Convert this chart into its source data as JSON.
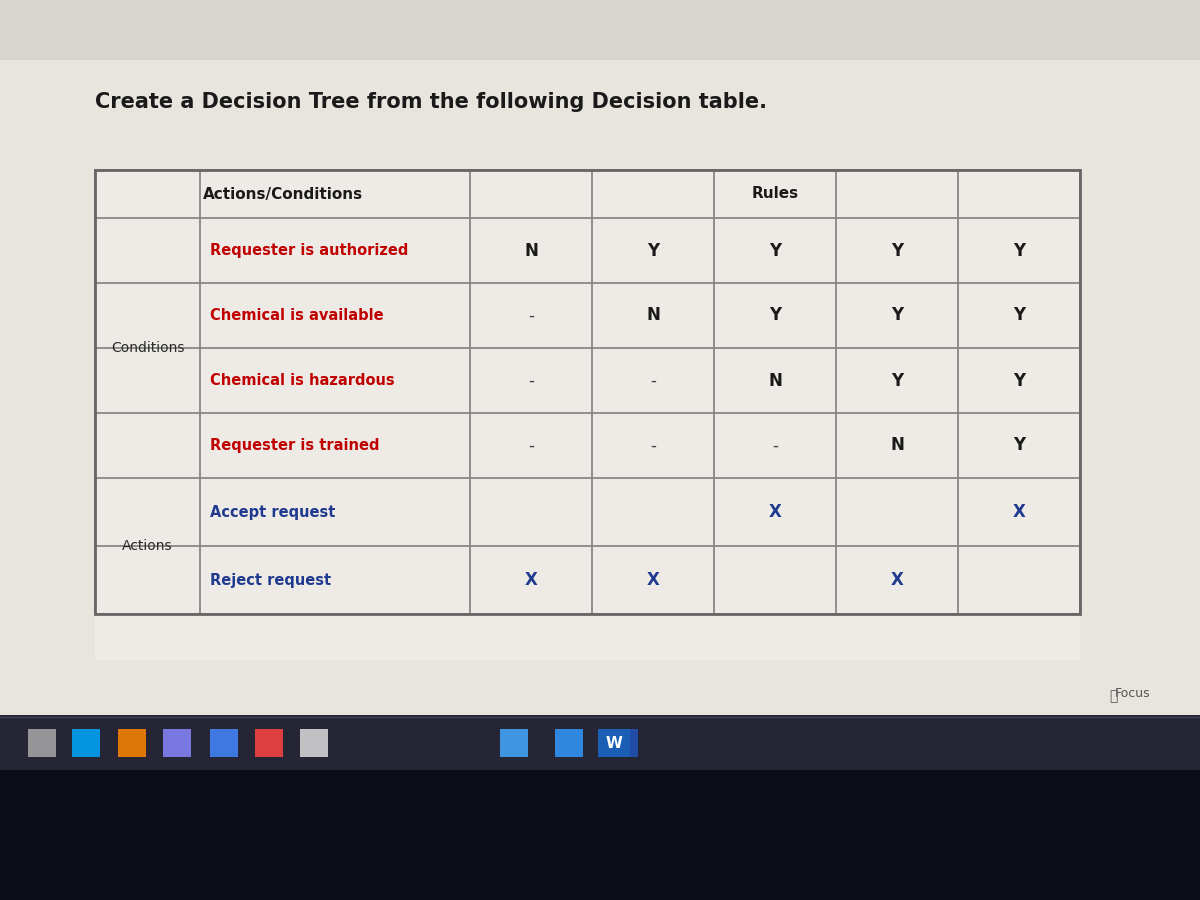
{
  "title": "Create a Decision Tree from the following Decision table.",
  "title_fontsize": 15,
  "col_header_1": "Actions/Conditions",
  "col_header_2": "Rules",
  "row_label_conditions": "Conditions",
  "row_label_actions": "Actions",
  "conditions": [
    "Requester is authorized",
    "Chemical is available",
    "Chemical is hazardous",
    "Requester is trained"
  ],
  "actions": [
    "Accept request",
    "Reject request"
  ],
  "condition_data": [
    [
      "N",
      "Y",
      "Y",
      "Y",
      "Y"
    ],
    [
      "-",
      "N",
      "Y",
      "Y",
      "Y"
    ],
    [
      "-",
      "-",
      "N",
      "Y",
      "Y"
    ],
    [
      "-",
      "-",
      "-",
      "N",
      "Y"
    ]
  ],
  "action_data": [
    [
      "",
      "",
      "X",
      "",
      "X"
    ],
    [
      "X",
      "X",
      "",
      "X",
      ""
    ]
  ],
  "condition_color": "#c00000",
  "action_color": "#1f3a8f",
  "header_text_color": "#1a1a1a",
  "label_text_color": "#2a2a2a",
  "ny_color": "#1a1a1a",
  "x_color": "#1f3a8f",
  "dash_color": "#444444",
  "bg_top_color": "#d8d4ce",
  "bg_mid_color": "#e8e4de",
  "bg_bottom_color": "#c8c4be",
  "taskbar_color": "#1a1a2a",
  "taskbar_bottom_color": "#0a0a14",
  "table_bg": "#f0ede8",
  "cell_bg": "#eeebe6",
  "border_color": "#888888",
  "fig_width": 12,
  "fig_height": 9
}
